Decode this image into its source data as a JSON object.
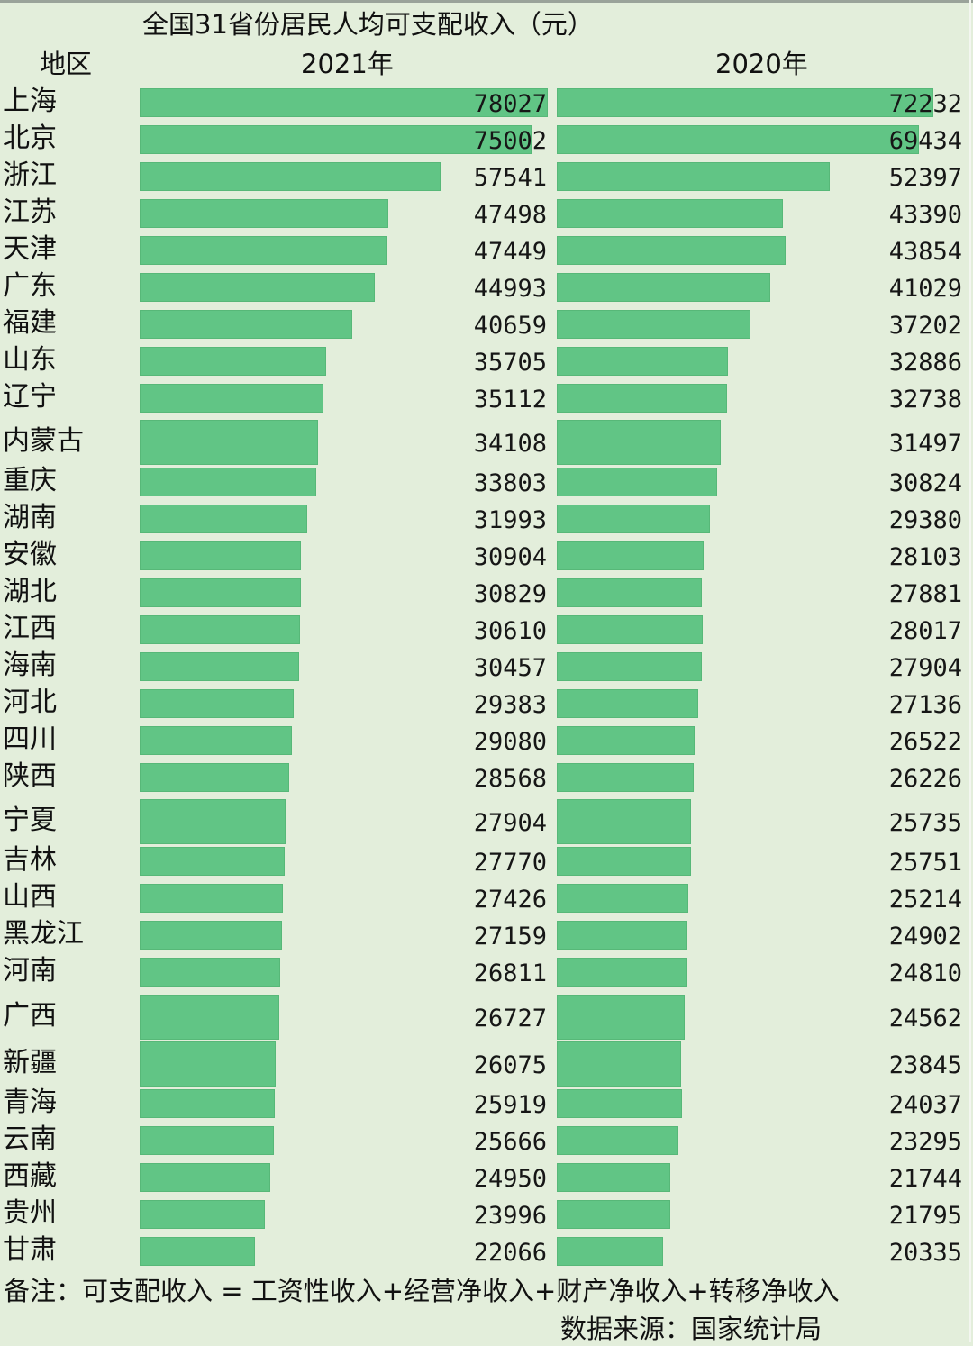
{
  "header": {
    "title": "全国31省份居民人均可支配收入（元）",
    "region_label": "地区",
    "col_2021": "2021年",
    "col_2020": "2020年"
  },
  "footer": {
    "note": "备注：可支配收入 = 工资性收入+经营净收入+财产净收入+转移净收入",
    "source": "数据来源：国家统计局"
  },
  "colors": {
    "bar": "#61c585",
    "background": "#e3eedb",
    "text": "#111111"
  },
  "rows": [
    {
      "region": "上海",
      "v2021": "78027",
      "v2020": "72232"
    },
    {
      "region": "北京",
      "v2021": "75002",
      "v2020": "69434"
    },
    {
      "region": "浙江",
      "v2021": "57541",
      "v2020": "52397"
    },
    {
      "region": "江苏",
      "v2021": "47498",
      "v2020": "43390"
    },
    {
      "region": "天津",
      "v2021": "47449",
      "v2020": "43854"
    },
    {
      "region": "广东",
      "v2021": "44993",
      "v2020": "41029"
    },
    {
      "region": "福建",
      "v2021": "40659",
      "v2020": "37202"
    },
    {
      "region": "山东",
      "v2021": "35705",
      "v2020": "32886"
    },
    {
      "region": "辽宁",
      "v2021": "35112",
      "v2020": "32738"
    },
    {
      "region": "内蒙古",
      "v2021": "34108",
      "v2020": "31497"
    },
    {
      "region": "重庆",
      "v2021": "33803",
      "v2020": "30824"
    },
    {
      "region": "湖南",
      "v2021": "31993",
      "v2020": "29380"
    },
    {
      "region": "安徽",
      "v2021": "30904",
      "v2020": "28103"
    },
    {
      "region": "湖北",
      "v2021": "30829",
      "v2020": "27881"
    },
    {
      "region": "江西",
      "v2021": "30610",
      "v2020": "28017"
    },
    {
      "region": "海南",
      "v2021": "30457",
      "v2020": "27904"
    },
    {
      "region": "河北",
      "v2021": "29383",
      "v2020": "27136"
    },
    {
      "region": "四川",
      "v2021": "29080",
      "v2020": "26522"
    },
    {
      "region": "陕西",
      "v2021": "28568",
      "v2020": "26226"
    },
    {
      "region": "宁夏",
      "v2021": "27904",
      "v2020": "25735"
    },
    {
      "region": "吉林",
      "v2021": "27770",
      "v2020": "25751"
    },
    {
      "region": "山西",
      "v2021": "27426",
      "v2020": "25214"
    },
    {
      "region": "黑龙江",
      "v2021": "27159",
      "v2020": "24902"
    },
    {
      "region": "河南",
      "v2021": "26811",
      "v2020": "24810"
    },
    {
      "region": "广西",
      "v2021": "26727",
      "v2020": "24562"
    },
    {
      "region": "新疆",
      "v2021": "26075",
      "v2020": "23845"
    },
    {
      "region": "青海",
      "v2021": "25919",
      "v2020": "24037"
    },
    {
      "region": "云南",
      "v2021": "25666",
      "v2020": "23295"
    },
    {
      "region": "西藏",
      "v2021": "24950",
      "v2020": "21744"
    },
    {
      "region": "贵州",
      "v2021": "23996",
      "v2020": "21795"
    },
    {
      "region": "甘肃",
      "v2021": "22066",
      "v2020": "20335"
    }
  ],
  "chart_data": {
    "type": "bar",
    "orientation": "horizontal",
    "title": "全国31省份居民人均可支配收入（元）",
    "xlabel": "",
    "ylabel": "地区",
    "categories": [
      "上海",
      "北京",
      "浙江",
      "江苏",
      "天津",
      "广东",
      "福建",
      "山东",
      "辽宁",
      "内蒙古",
      "重庆",
      "湖南",
      "安徽",
      "湖北",
      "江西",
      "海南",
      "河北",
      "四川",
      "陕西",
      "宁夏",
      "吉林",
      "山西",
      "黑龙江",
      "河南",
      "广西",
      "新疆",
      "青海",
      "云南",
      "西藏",
      "贵州",
      "甘肃"
    ],
    "series": [
      {
        "name": "2021年",
        "values": [
          78027,
          75002,
          57541,
          47498,
          47449,
          44993,
          40659,
          35705,
          35112,
          34108,
          33803,
          31993,
          30904,
          30829,
          30610,
          30457,
          29383,
          29080,
          28568,
          27904,
          27770,
          27426,
          27159,
          26811,
          26727,
          26075,
          25919,
          25666,
          24950,
          23996,
          22066
        ]
      },
      {
        "name": "2020年",
        "values": [
          72232,
          69434,
          52397,
          43390,
          43854,
          41029,
          37202,
          32886,
          32738,
          31497,
          30824,
          29380,
          28103,
          27881,
          28017,
          27904,
          27136,
          26522,
          26226,
          25735,
          25751,
          25214,
          24902,
          24810,
          24562,
          23845,
          24037,
          23295,
          21744,
          21795,
          20335
        ]
      }
    ],
    "annotations": [
      "备注：可支配收入 = 工资性收入+经营净收入+财产净收入+转移净收入",
      "数据来源：国家统计局"
    ],
    "legend_position": "column headers (top)",
    "grid": false,
    "data_labels": true
  }
}
